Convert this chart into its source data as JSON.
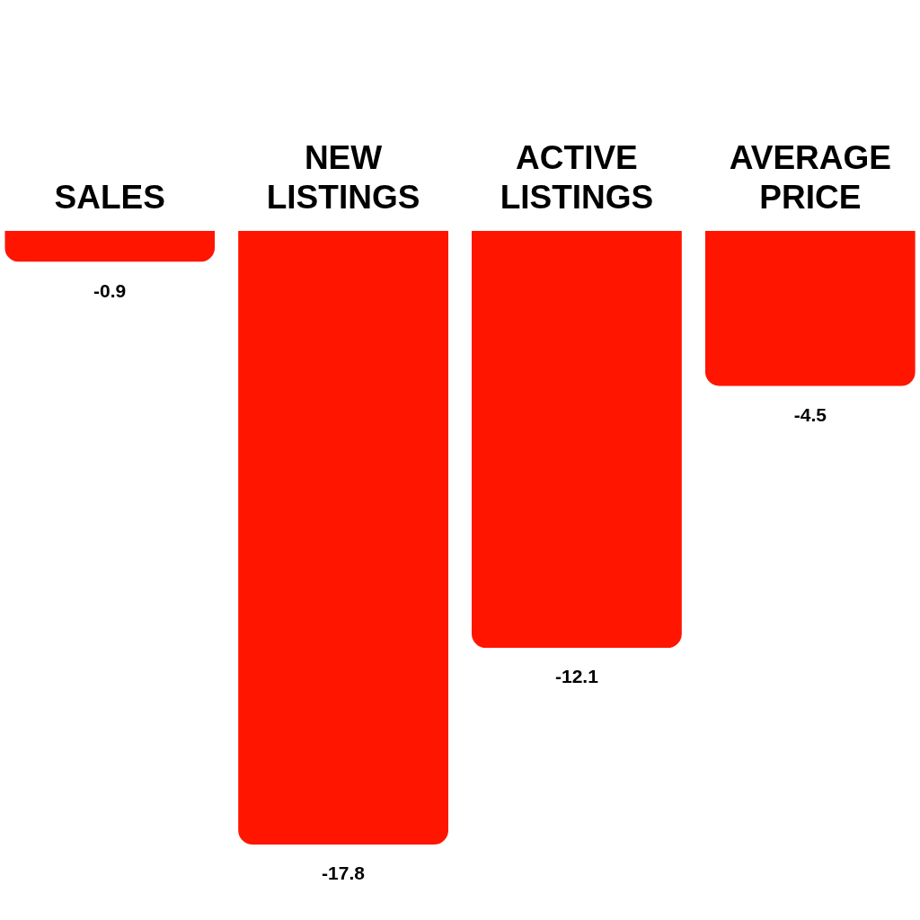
{
  "chart_data": {
    "type": "bar",
    "categories": [
      "SALES",
      "NEW LISTINGS",
      "ACTIVE LISTINGS",
      "AVERAGE PRICE"
    ],
    "values": [
      -0.9,
      -17.8,
      -12.1,
      -4.5
    ],
    "color": "#ff1500",
    "data_labels": true
  }
}
